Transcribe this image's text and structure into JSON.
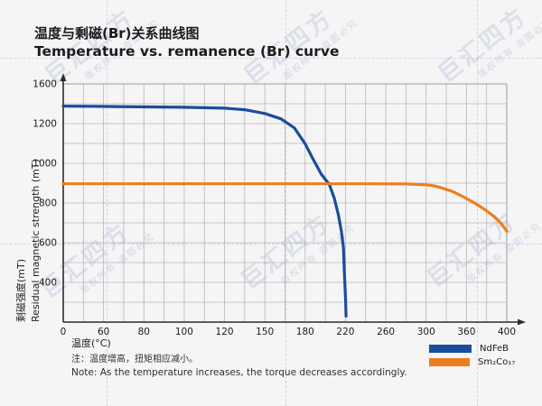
{
  "page": {
    "background": "#f5f5f6"
  },
  "header": {
    "title_zh": "温度与剩磁(Br)关系曲线图",
    "title_en": "Temperature vs. remanence (Br) curve"
  },
  "watermark": {
    "brand": "巨汇四方",
    "notice": "版权所有 盗图必究",
    "color": "#b6bdd8"
  },
  "chart_data": {
    "type": "line",
    "title": "Temperature vs. remanence (Br) curve",
    "xlabel": "温度(°C)",
    "ylabel_zh": "剩磁强度(mT)",
    "ylabel_en": "Residual magnetic strength (mT)",
    "x_ticks": [
      0,
      60,
      80,
      100,
      120,
      150,
      180,
      220,
      260,
      300,
      360,
      400
    ],
    "y_ticks": [
      0,
      400,
      600,
      800,
      1000,
      1200,
      1600
    ],
    "grid": true,
    "legend_position": "bottom-right",
    "scale_note": "tick labels are evenly spaced on both axes; values interpolate piecewise-linearly between adjacent ticks",
    "series": [
      {
        "name": "NdFeB",
        "color": "#1b4c9c",
        "points": [
          [
            0,
            1376
          ],
          [
            50,
            1374
          ],
          [
            100,
            1365
          ],
          [
            120,
            1355
          ],
          [
            135,
            1340
          ],
          [
            150,
            1302
          ],
          [
            162,
            1248
          ],
          [
            172,
            1178
          ],
          [
            180,
            1098
          ],
          [
            188,
            1020
          ],
          [
            196,
            945
          ],
          [
            204,
            893
          ],
          [
            209,
            822
          ],
          [
            213,
            740
          ],
          [
            216,
            655
          ],
          [
            218,
            575
          ],
          [
            219,
            440
          ],
          [
            220,
            240
          ],
          [
            220.6,
            60
          ]
        ]
      },
      {
        "name": "Sm₂Co₁₇",
        "color": "#ee7e1d",
        "points": [
          [
            0,
            897
          ],
          [
            60,
            897
          ],
          [
            120,
            897
          ],
          [
            180,
            897
          ],
          [
            240,
            897
          ],
          [
            280,
            896
          ],
          [
            300,
            892
          ],
          [
            312,
            886
          ],
          [
            325,
            874
          ],
          [
            340,
            857
          ],
          [
            355,
            832
          ],
          [
            368,
            800
          ],
          [
            378,
            768
          ],
          [
            388,
            730
          ],
          [
            395,
            693
          ],
          [
            400,
            658
          ]
        ]
      }
    ]
  },
  "legend": {
    "items": [
      {
        "label": "NdFeB",
        "color": "#1b4c9c"
      },
      {
        "label": "Sm₂Co₁₇",
        "color": "#ee7e1d"
      }
    ]
  },
  "note": {
    "zh": "注：温度增高，扭矩相应减小。",
    "en": "Note: As the temperature increases, the torque decreases accordingly."
  }
}
